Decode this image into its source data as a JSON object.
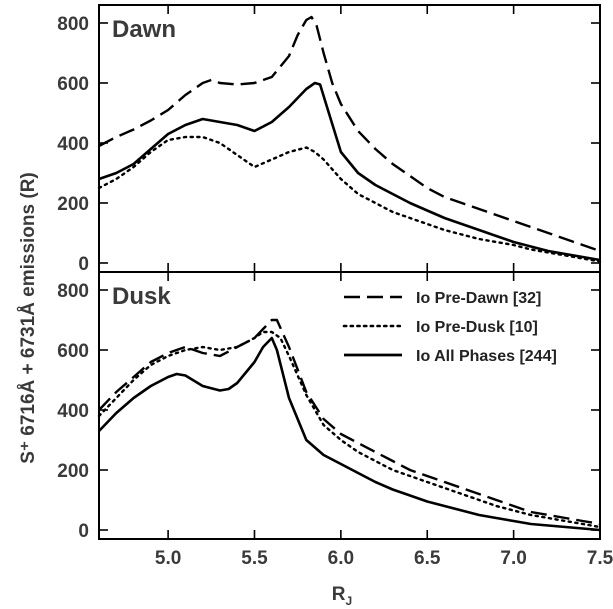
{
  "chart_data": {
    "type": "line",
    "ylabel": "S⁺ 6716Å + 6731Å emissions (R)",
    "xlabel": "R",
    "xlabel_sub": "J",
    "xlim": [
      4.6,
      7.5
    ],
    "x_ticks": [
      "5.0",
      "5.5",
      "6.0",
      "6.5",
      "7.0",
      "7.5"
    ],
    "legend_placement": "top-right of Dusk panel",
    "colors": {
      "lines": "#000000",
      "text": "#3a3a3a"
    },
    "panels": [
      {
        "title": "Dawn",
        "ylim": [
          -30,
          860
        ],
        "y_ticks": [
          "800",
          "600",
          "400",
          "200",
          "0"
        ],
        "series": [
          {
            "name": "Io Pre-Dawn [32]",
            "style": "dashed",
            "x": [
              4.6,
              4.7,
              4.8,
              4.9,
              5.0,
              5.1,
              5.2,
              5.25,
              5.3,
              5.4,
              5.5,
              5.6,
              5.7,
              5.75,
              5.8,
              5.83,
              5.86,
              5.9,
              5.95,
              6.0,
              6.1,
              6.2,
              6.3,
              6.4,
              6.5,
              6.6,
              6.7,
              6.8,
              6.9,
              7.0,
              7.1,
              7.2,
              7.3,
              7.4,
              7.5
            ],
            "y": [
              390,
              420,
              445,
              475,
              510,
              560,
              600,
              610,
              600,
              595,
              600,
              620,
              690,
              760,
              810,
              820,
              790,
              700,
              600,
              530,
              440,
              380,
              330,
              290,
              250,
              220,
              200,
              180,
              160,
              140,
              120,
              100,
              80,
              60,
              40
            ]
          },
          {
            "name": "Io Pre-Dusk [10]",
            "style": "dotted",
            "x": [
              4.6,
              4.7,
              4.8,
              4.9,
              5.0,
              5.1,
              5.2,
              5.3,
              5.4,
              5.5,
              5.6,
              5.7,
              5.8,
              5.85,
              5.9,
              6.0,
              6.1,
              6.2,
              6.3,
              6.4,
              6.5,
              6.6,
              6.7,
              6.8,
              6.9,
              7.0,
              7.1,
              7.2,
              7.3,
              7.4,
              7.5
            ],
            "y": [
              250,
              280,
              320,
              370,
              410,
              420,
              420,
              400,
              360,
              320,
              345,
              370,
              385,
              370,
              345,
              280,
              230,
              200,
              170,
              150,
              130,
              110,
              95,
              80,
              70,
              60,
              45,
              35,
              25,
              15,
              5
            ]
          },
          {
            "name": "Io All Phases [244]",
            "style": "solid",
            "x": [
              4.6,
              4.7,
              4.8,
              4.9,
              5.0,
              5.1,
              5.2,
              5.25,
              5.3,
              5.4,
              5.5,
              5.6,
              5.7,
              5.8,
              5.85,
              5.88,
              5.92,
              6.0,
              6.1,
              6.2,
              6.3,
              6.4,
              6.5,
              6.6,
              6.7,
              6.8,
              6.9,
              7.0,
              7.1,
              7.2,
              7.3,
              7.4,
              7.5
            ],
            "y": [
              280,
              300,
              330,
              380,
              430,
              460,
              480,
              475,
              470,
              460,
              440,
              470,
              520,
              580,
              600,
              595,
              520,
              370,
              300,
              260,
              230,
              200,
              175,
              150,
              130,
              110,
              90,
              70,
              55,
              40,
              30,
              20,
              10
            ]
          }
        ]
      },
      {
        "title": "Dusk",
        "ylim": [
          -30,
          860
        ],
        "y_ticks": [
          "800",
          "600",
          "400",
          "200",
          "0"
        ],
        "series": [
          {
            "name": "Io Pre-Dawn [32]",
            "style": "dashed",
            "x": [
              4.6,
              4.7,
              4.8,
              4.9,
              5.0,
              5.1,
              5.2,
              5.3,
              5.4,
              5.5,
              5.55,
              5.6,
              5.63,
              5.7,
              5.8,
              5.9,
              6.0,
              6.1,
              6.2,
              6.3,
              6.4,
              6.5,
              6.6,
              6.7,
              6.8,
              6.9,
              7.0,
              7.1,
              7.2,
              7.3,
              7.4,
              7.5
            ],
            "y": [
              400,
              460,
              510,
              560,
              590,
              610,
              590,
              580,
              610,
              640,
              670,
              700,
              700,
              610,
              460,
              370,
              320,
              290,
              260,
              230,
              200,
              180,
              160,
              140,
              120,
              100,
              80,
              60,
              50,
              40,
              30,
              20
            ]
          },
          {
            "name": "Io Pre-Dusk [10]",
            "style": "dotted",
            "x": [
              4.6,
              4.7,
              4.8,
              4.9,
              5.0,
              5.1,
              5.2,
              5.3,
              5.4,
              5.5,
              5.55,
              5.6,
              5.65,
              5.7,
              5.8,
              5.9,
              6.0,
              6.1,
              6.2,
              6.3,
              6.4,
              6.5,
              6.6,
              6.7,
              6.8,
              6.9,
              7.0,
              7.1,
              7.2,
              7.3,
              7.4,
              7.5
            ],
            "y": [
              380,
              440,
              500,
              550,
              580,
              600,
              610,
              600,
              610,
              640,
              660,
              660,
              640,
              580,
              450,
              350,
              300,
              260,
              230,
              200,
              180,
              160,
              140,
              120,
              100,
              80,
              65,
              50,
              40,
              30,
              20,
              10
            ]
          },
          {
            "name": "Io All Phases [244]",
            "style": "solid",
            "x": [
              4.6,
              4.7,
              4.8,
              4.9,
              5.0,
              5.05,
              5.1,
              5.2,
              5.3,
              5.35,
              5.4,
              5.5,
              5.55,
              5.6,
              5.63,
              5.7,
              5.8,
              5.9,
              6.0,
              6.1,
              6.2,
              6.3,
              6.4,
              6.5,
              6.6,
              6.7,
              6.8,
              6.9,
              7.0,
              7.1,
              7.2,
              7.3,
              7.4,
              7.5
            ],
            "y": [
              330,
              390,
              440,
              480,
              510,
              520,
              515,
              480,
              465,
              470,
              490,
              560,
              610,
              640,
              600,
              440,
              300,
              250,
              220,
              190,
              160,
              135,
              115,
              95,
              80,
              65,
              50,
              40,
              30,
              20,
              15,
              10,
              5,
              0
            ]
          }
        ]
      }
    ]
  }
}
